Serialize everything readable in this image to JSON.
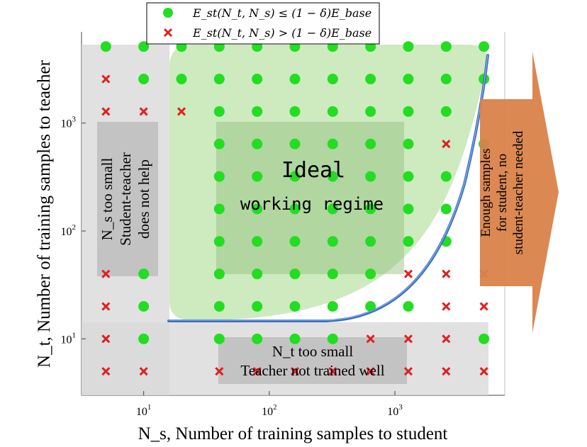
{
  "chart_data": {
    "type": "scatter",
    "x_scale": "log",
    "y_scale": "log",
    "xlabel": "N_s, Number of training samples to student",
    "ylabel": "N_t, Number of training samples to teacher",
    "xlim": [
      3.2,
      7500
    ],
    "ylim": [
      3.0,
      7000
    ],
    "x_ticks": [
      {
        "value": 10,
        "base": "10",
        "exp": "1"
      },
      {
        "value": 100,
        "base": "10",
        "exp": "2"
      },
      {
        "value": 1000,
        "base": "10",
        "exp": "3"
      }
    ],
    "y_ticks": [
      {
        "value": 10,
        "base": "10",
        "exp": "1"
      },
      {
        "value": 100,
        "base": "10",
        "exp": "2"
      },
      {
        "value": 1000,
        "base": "10",
        "exp": "3"
      }
    ],
    "legend": {
      "position": "top-center",
      "entries": [
        {
          "marker": "circle",
          "color": "#22dd22",
          "label": "E_st(N_t, N_s) ≤ (1 − δ)E_base"
        },
        {
          "marker": "cross",
          "color": "#e02020",
          "label": "E_st(N_t, N_s) > (1 − δ)E_base"
        }
      ]
    },
    "x_values": [
      5,
      10,
      20,
      40,
      80,
      160,
      320,
      640,
      1280,
      2560,
      5120
    ],
    "y_values": [
      5,
      10,
      20,
      40,
      80,
      160,
      320,
      640,
      1280,
      2560,
      5120
    ],
    "grid_rows_top_to_bottom": [
      "ooooooooooo",
      "xoooooooooo",
      "xxxooooooo.",
      "...ooooooxo",
      "...ooooooo.",
      "...ooooooo.",
      "...ooooooo.",
      "xo.oooooxxx",
      "xo.ooooooxx",
      "xo.ooooxxxo",
      "xx.xxxxxxxx"
    ],
    "colors": {
      "success": "#22dd22",
      "failure": "#e02020",
      "boundary": "#3a6fc4",
      "ideal_region": "#a6d88a",
      "gray_region": "#d9d9d9",
      "arrow": "#d9824a"
    },
    "annotations": {
      "ideal_title": "Ideal",
      "ideal_subtitle": "working regime",
      "ns_small_line1": "N_s too small",
      "ns_small_line2": "Student-teacher",
      "ns_small_line3": "does not help",
      "nt_small_line1": "N_t too small",
      "nt_small_line2": "Teacher not trained well",
      "enough_line1": "Enough samples",
      "enough_line2": "for student, no",
      "enough_line3": "student-teacher needed"
    }
  }
}
